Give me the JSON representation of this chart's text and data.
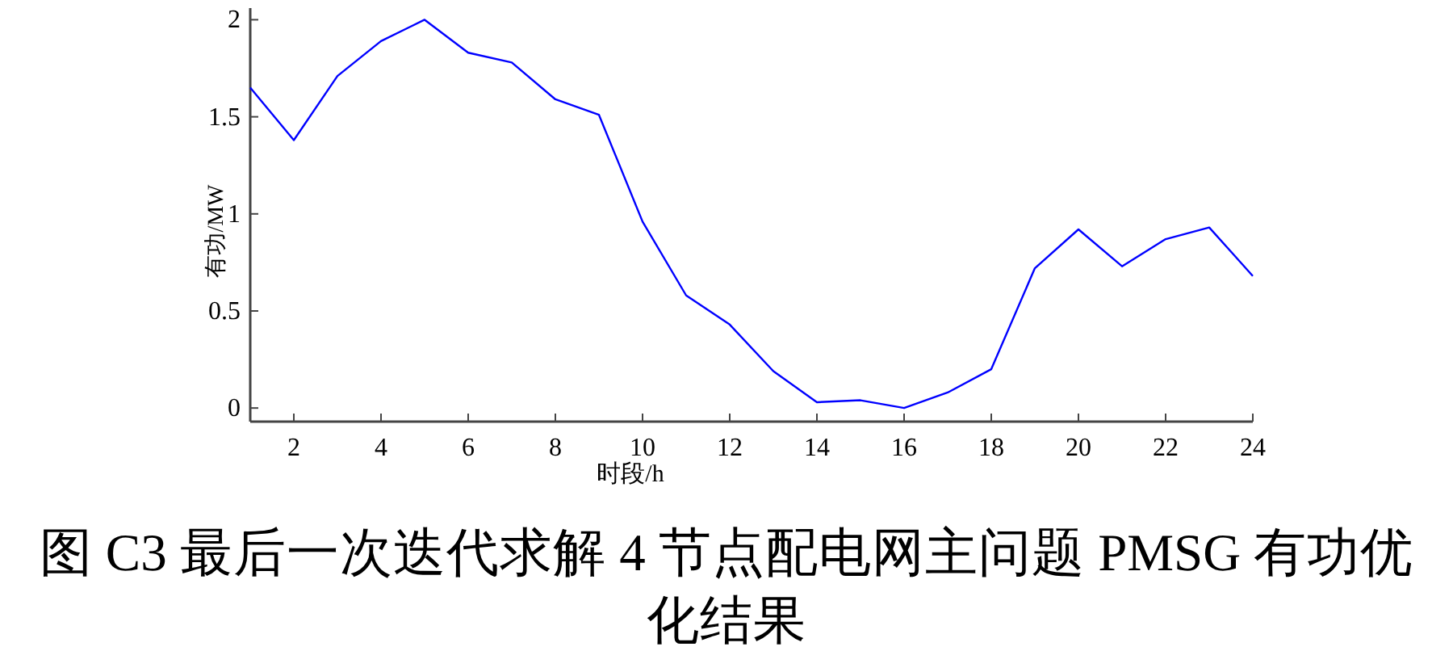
{
  "chart_data": {
    "type": "line",
    "xlabel": "时段/h",
    "ylabel": "有功/MW",
    "annotations": [
      "图 C3 最后一次迭代求解 4 节点配电网主问题 PMSG 有功优化结果"
    ],
    "x": [
      1,
      2,
      3,
      4,
      5,
      6,
      7,
      8,
      9,
      10,
      11,
      12,
      13,
      14,
      15,
      16,
      17,
      18,
      19,
      20,
      21,
      22,
      23,
      24
    ],
    "series": [
      {
        "color": "#0000ff",
        "values": [
          1.65,
          1.38,
          1.71,
          1.89,
          2.0,
          1.83,
          1.78,
          1.59,
          1.51,
          0.96,
          0.58,
          0.43,
          0.19,
          0.03,
          0.04,
          0.0,
          0.08,
          0.2,
          0.72,
          0.92,
          0.73,
          0.87,
          0.93,
          0.68
        ]
      }
    ],
    "xlim": [
      1,
      24
    ],
    "ylim": [
      -0.07,
      2.06
    ],
    "xticks": [
      2,
      4,
      6,
      8,
      10,
      12,
      14,
      16,
      18,
      20,
      22,
      24
    ],
    "yticks": [
      0,
      0.5,
      1,
      1.5,
      2
    ],
    "grid": false,
    "marker": "none",
    "line_style": "solid"
  }
}
